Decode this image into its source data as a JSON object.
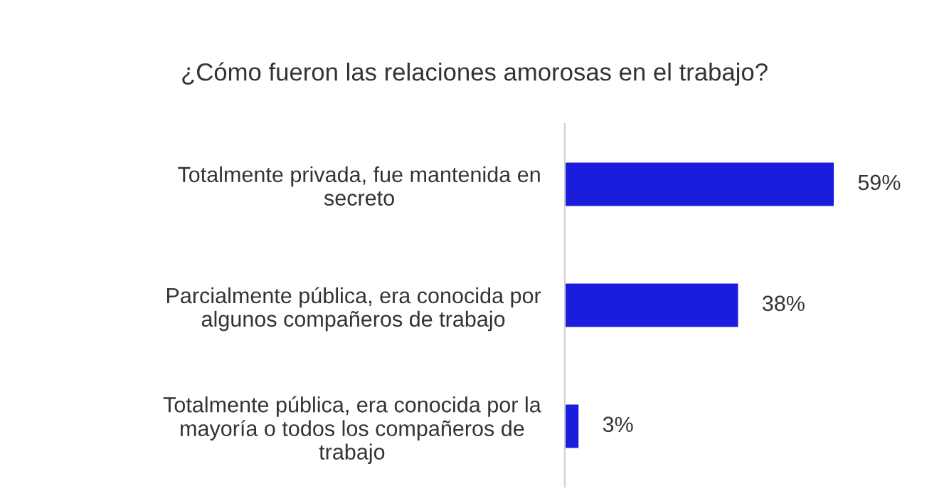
{
  "chart_data": {
    "type": "bar",
    "orientation": "horizontal",
    "title": "¿Cómo fueron las relaciones amorosas en el trabajo?",
    "categories": [
      "Totalmente privada, fue mantenida en\nsecreto",
      "Parcialmente pública, era conocida por\nalgunos compañeros de trabajo",
      "Totalmente pública, era conocida por la\nmayoría o todos los compañeros de\ntrabajo"
    ],
    "values": [
      59,
      38,
      3
    ],
    "color": "#1a1edc",
    "value_labels": [
      "59%",
      "38%",
      "3%"
    ]
  }
}
